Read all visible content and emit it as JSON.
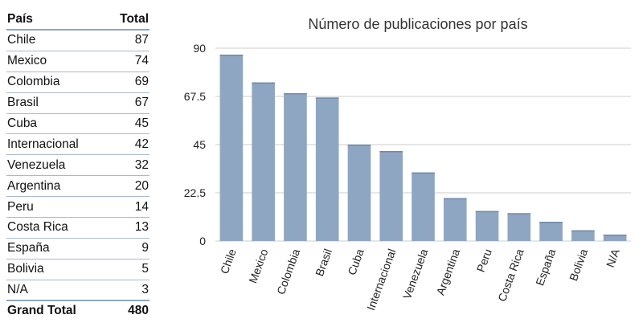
{
  "table": {
    "header": {
      "col1": "País",
      "col2": "Total"
    },
    "rows": [
      {
        "label": "Chile",
        "value": "87"
      },
      {
        "label": "Mexico",
        "value": "74"
      },
      {
        "label": "Colombia",
        "value": "69"
      },
      {
        "label": "Brasil",
        "value": "67"
      },
      {
        "label": "Cuba",
        "value": "45"
      },
      {
        "label": "Internacional",
        "value": "42"
      },
      {
        "label": "Venezuela",
        "value": "32"
      },
      {
        "label": "Argentina",
        "value": "20"
      },
      {
        "label": "Peru",
        "value": "14"
      },
      {
        "label": "Costa Rica",
        "value": "13"
      },
      {
        "label": "España",
        "value": "9"
      },
      {
        "label": "Bolivia",
        "value": "5"
      },
      {
        "label": "N/A",
        "value": "3"
      }
    ],
    "footer": {
      "label": "Grand Total",
      "value": "480"
    }
  },
  "chart_data": {
    "type": "bar",
    "title": "Número de publicaciones por país",
    "categories": [
      "Chile",
      "Mexico",
      "Colombia",
      "Brasil",
      "Cuba",
      "Internacional",
      "Venezuela",
      "Argentina",
      "Peru",
      "Costa Rica",
      "España",
      "Bolivia",
      "N/A"
    ],
    "values": [
      87,
      74,
      69,
      67,
      45,
      42,
      32,
      20,
      14,
      13,
      9,
      5,
      3
    ],
    "ylim": [
      0,
      90
    ],
    "yticks": [
      "0",
      "22.5",
      "45",
      "67.5",
      "90"
    ],
    "xlabel": "",
    "ylabel": "",
    "grid": true,
    "legend": "none",
    "bar_color": "#8fa6c2",
    "grid_color": "#cccccc"
  }
}
